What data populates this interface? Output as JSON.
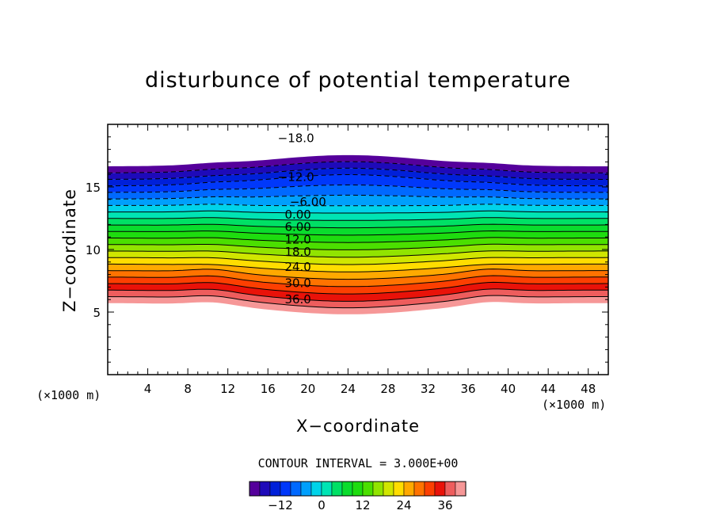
{
  "title": "disturbunce of potential temperature",
  "xlabel": "X−coordinate",
  "ylabel": "Z−coordinate",
  "x_unit_left": "(×1000 m)",
  "x_unit_right": "(×1000 m)",
  "contour_interval_text": "CONTOUR INTERVAL = 3.000E+00",
  "chart_data": {
    "type": "heatmap",
    "title": "disturbunce of potential temperature",
    "xlabel": "X−coordinate",
    "ylabel": "Z−coordinate",
    "x_unit": "(×1000 m)",
    "xlim": [
      0,
      50
    ],
    "ylim": [
      0,
      20
    ],
    "x_ticks": [
      4,
      8,
      12,
      16,
      20,
      24,
      28,
      32,
      36,
      40,
      44,
      48
    ],
    "y_ticks": [
      5,
      10,
      15
    ],
    "contour_interval": 3.0,
    "value_range": [
      -21,
      42
    ],
    "colorbar_ticks": [
      -12,
      0,
      12,
      24,
      36
    ],
    "contour_labels": [
      {
        "text": "−18.0",
        "x": 18.8,
        "z": 18.9
      },
      {
        "text": "−12.0",
        "x": 18.8,
        "z": 15.8
      },
      {
        "text": "−6.00",
        "x": 20.0,
        "z": 13.8
      },
      {
        "text": "0.00",
        "x": 19.0,
        "z": 12.8
      },
      {
        "text": "6.00",
        "x": 19.0,
        "z": 11.8
      },
      {
        "text": "12.0",
        "x": 19.0,
        "z": 10.8
      },
      {
        "text": "18.0",
        "x": 19.0,
        "z": 9.8
      },
      {
        "text": "24.0",
        "x": 19.0,
        "z": 8.6
      },
      {
        "text": "30.0",
        "x": 19.0,
        "z": 7.3
      },
      {
        "text": "36.0",
        "x": 19.0,
        "z": 6.0
      }
    ],
    "negative_contours_dashed": true,
    "grid": false,
    "legend": "colorbar-bottom"
  }
}
